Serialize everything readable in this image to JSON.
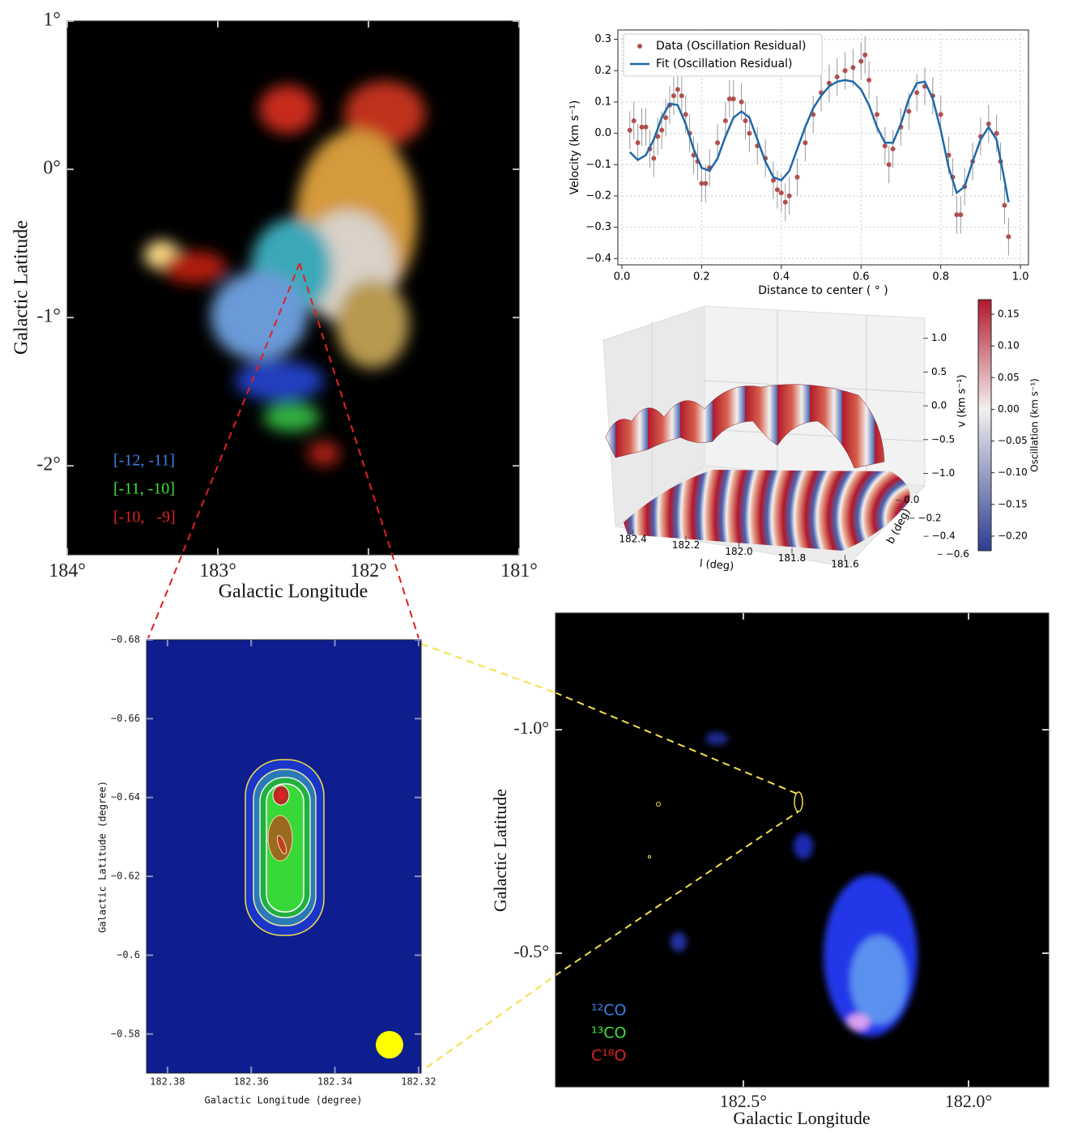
{
  "chart_data": [
    {
      "type": "image",
      "xlabel": "Galactic Longitude",
      "ylabel": "Galactic Latitude",
      "xlim": [
        184,
        181
      ],
      "xticks": [
        {
          "value": 184,
          "label": "184°"
        },
        {
          "value": 183,
          "label": "183°"
        },
        {
          "value": 182,
          "label": "182°"
        },
        {
          "value": 181,
          "label": "181°"
        }
      ],
      "ylim": [
        -2.6,
        1
      ],
      "yticks": [
        {
          "value": 1,
          "label": "1°"
        },
        {
          "value": 0,
          "label": "0°"
        },
        {
          "value": -1,
          "label": "-1°"
        },
        {
          "value": -2,
          "label": "-2°"
        }
      ],
      "legend": [
        {
          "text": "[-12, -11]",
          "color": "#3a80e8"
        },
        {
          "text": "[-11, -10]",
          "color": "#3ee03a"
        },
        {
          "text": "[-10,   -9]",
          "color": "#e02222"
        }
      ]
    },
    {
      "type": "scatter",
      "xlabel": "Distance to center ( ° )",
      "ylabel": "Velocity (km s⁻¹)",
      "grid": true,
      "legend": "upper left",
      "xlim": [
        -0.01,
        1.02
      ],
      "xticks": [
        {
          "value": 0,
          "label": "0.0"
        },
        0.2,
        0.4,
        0.6,
        0.8,
        {
          "value": 1,
          "label": "1.0"
        }
      ],
      "ylim": [
        -0.42,
        0.33
      ],
      "yticks": [
        0.3,
        0.2,
        0.1,
        {
          "value": 0,
          "label": "0.0"
        },
        {
          "value": -0.1,
          "label": "−0.1"
        },
        {
          "value": -0.2,
          "label": "−0.2"
        },
        {
          "value": -0.3,
          "label": "−0.3"
        },
        {
          "value": -0.4,
          "label": "−0.4"
        }
      ],
      "series": [
        {
          "name": "Data (Oscillation Residual)",
          "kind": "points",
          "color": "#b0504e",
          "yerr": 0.06,
          "x": [
            0.02,
            0.03,
            0.04,
            0.05,
            0.06,
            0.07,
            0.08,
            0.09,
            0.1,
            0.11,
            0.12,
            0.13,
            0.14,
            0.15,
            0.16,
            0.17,
            0.18,
            0.19,
            0.2,
            0.21,
            0.22,
            0.24,
            0.26,
            0.27,
            0.28,
            0.3,
            0.31,
            0.32,
            0.34,
            0.36,
            0.38,
            0.39,
            0.4,
            0.41,
            0.42,
            0.44,
            0.46,
            0.48,
            0.5,
            0.52,
            0.54,
            0.56,
            0.58,
            0.6,
            0.61,
            0.62,
            0.64,
            0.66,
            0.67,
            0.68,
            0.7,
            0.72,
            0.74,
            0.76,
            0.78,
            0.8,
            0.82,
            0.83,
            0.84,
            0.85,
            0.86,
            0.88,
            0.9,
            0.92,
            0.94,
            0.95,
            0.96,
            0.97
          ],
          "values": [
            0.01,
            0.04,
            -0.03,
            0.02,
            0.02,
            -0.05,
            -0.08,
            -0.01,
            0.01,
            0.05,
            0.09,
            0.12,
            0.14,
            0.12,
            0.06,
            0.0,
            -0.07,
            -0.09,
            -0.16,
            -0.16,
            -0.11,
            -0.03,
            0.04,
            0.11,
            0.11,
            0.1,
            0.04,
            0.0,
            -0.04,
            -0.08,
            -0.15,
            -0.18,
            -0.19,
            -0.22,
            -0.2,
            -0.14,
            -0.03,
            0.06,
            0.13,
            0.16,
            0.18,
            0.2,
            0.21,
            0.23,
            0.25,
            0.17,
            0.06,
            -0.04,
            -0.1,
            -0.05,
            0.02,
            0.07,
            0.13,
            0.15,
            0.12,
            0.06,
            -0.07,
            -0.14,
            -0.26,
            -0.26,
            -0.17,
            -0.09,
            -0.01,
            0.03,
            0.0,
            -0.09,
            -0.23,
            -0.33
          ]
        },
        {
          "name": "Fit (Oscillation Residual)",
          "kind": "line",
          "color": "#1f68a8",
          "x": [
            0.02,
            0.04,
            0.06,
            0.08,
            0.1,
            0.12,
            0.14,
            0.16,
            0.18,
            0.2,
            0.22,
            0.24,
            0.26,
            0.28,
            0.3,
            0.32,
            0.34,
            0.36,
            0.38,
            0.4,
            0.42,
            0.44,
            0.46,
            0.48,
            0.5,
            0.52,
            0.54,
            0.56,
            0.58,
            0.6,
            0.62,
            0.64,
            0.66,
            0.68,
            0.7,
            0.72,
            0.74,
            0.76,
            0.78,
            0.8,
            0.82,
            0.84,
            0.86,
            0.88,
            0.9,
            0.92,
            0.94,
            0.96,
            0.97
          ],
          "values": [
            -0.06,
            -0.085,
            -0.07,
            -0.02,
            0.05,
            0.095,
            0.09,
            0.03,
            -0.05,
            -0.11,
            -0.12,
            -0.08,
            -0.01,
            0.05,
            0.07,
            0.05,
            -0.02,
            -0.09,
            -0.14,
            -0.15,
            -0.12,
            -0.05,
            0.02,
            0.08,
            0.12,
            0.15,
            0.165,
            0.17,
            0.165,
            0.14,
            0.09,
            0.02,
            -0.03,
            -0.03,
            0.03,
            0.11,
            0.16,
            0.165,
            0.11,
            0.01,
            -0.11,
            -0.19,
            -0.17,
            -0.09,
            -0.02,
            0.02,
            -0.02,
            -0.15,
            -0.22
          ]
        }
      ]
    },
    {
      "type": "surface",
      "xlabel": "l (deg)",
      "ylabel": "b (deg)",
      "zlabel": "v (km s⁻¹)",
      "colorbar_label": "Oscillation (km s⁻¹)",
      "colormap": [
        "#2c3e91",
        "#f2f0ef",
        "#b2182b"
      ],
      "xlim": [
        182.42,
        181.58
      ],
      "xticks": [
        182.4,
        182.2,
        {
          "value": 182,
          "label": "182.0"
        },
        181.8,
        181.6
      ],
      "ylim": [
        0.05,
        -0.65
      ],
      "yticks": [
        {
          "value": 0,
          "label": "0.0"
        },
        {
          "value": -0.2,
          "label": "−0.2"
        },
        {
          "value": -0.4,
          "label": "−0.4"
        },
        {
          "value": -0.6,
          "label": "−0.6"
        }
      ],
      "zlim": [
        -1.15,
        1.2
      ],
      "zticks": [
        {
          "value": 1,
          "label": "1.0"
        },
        0.5,
        {
          "value": 0,
          "label": "0.0"
        },
        {
          "value": -0.5,
          "label": "−0.5"
        },
        {
          "value": -1,
          "label": "−1.0"
        }
      ],
      "clim": [
        -0.223,
        0.173
      ],
      "cticks": [
        0.15,
        {
          "value": 0.1,
          "label": "0.10"
        },
        0.05,
        {
          "value": 0,
          "label": "0.00"
        },
        {
          "value": -0.05,
          "label": "−0.05"
        },
        {
          "value": -0.1,
          "label": "−0.10"
        },
        {
          "value": -0.15,
          "label": "−0.15"
        },
        {
          "value": -0.2,
          "label": "−0.20"
        }
      ]
    },
    {
      "type": "image",
      "xlabel": "Galactic Longitude (degree)",
      "ylabel": "Galactic Latitude (degree)",
      "xlim": [
        182.385,
        182.3194
      ],
      "xticks": [
        182.38,
        182.36,
        182.34,
        182.32
      ],
      "ylim": [
        -0.5701,
        -0.68
      ],
      "yticks": [
        {
          "value": -0.58,
          "label": "−0.58"
        },
        {
          "value": -0.6,
          "label": "−0.6"
        },
        {
          "value": -0.62,
          "label": "−0.62"
        },
        {
          "value": -0.64,
          "label": "−0.64"
        },
        {
          "value": -0.66,
          "label": "−0.66"
        },
        {
          "value": -0.68,
          "label": "−0.68"
        }
      ]
    },
    {
      "type": "image",
      "xlabel": "Galactic Longitude",
      "ylabel": "Galactic Latitude",
      "xlim": [
        182.917,
        181.822
      ],
      "xticks": [
        {
          "value": 182.5,
          "label": "182.5°"
        },
        {
          "value": 182,
          "label": "182.0°"
        }
      ],
      "ylim": [
        -0.201,
        -1.261
      ],
      "yticks": [
        {
          "value": -0.5,
          "label": "-0.5°"
        },
        {
          "value": -1,
          "label": "-1.0°"
        }
      ],
      "legend": [
        {
          "text": "¹²CO",
          "color": "#3a80e8"
        },
        {
          "text": "¹³CO",
          "color": "#3ee03a"
        },
        {
          "text": "C¹⁸O",
          "color": "#e02222"
        }
      ]
    }
  ]
}
